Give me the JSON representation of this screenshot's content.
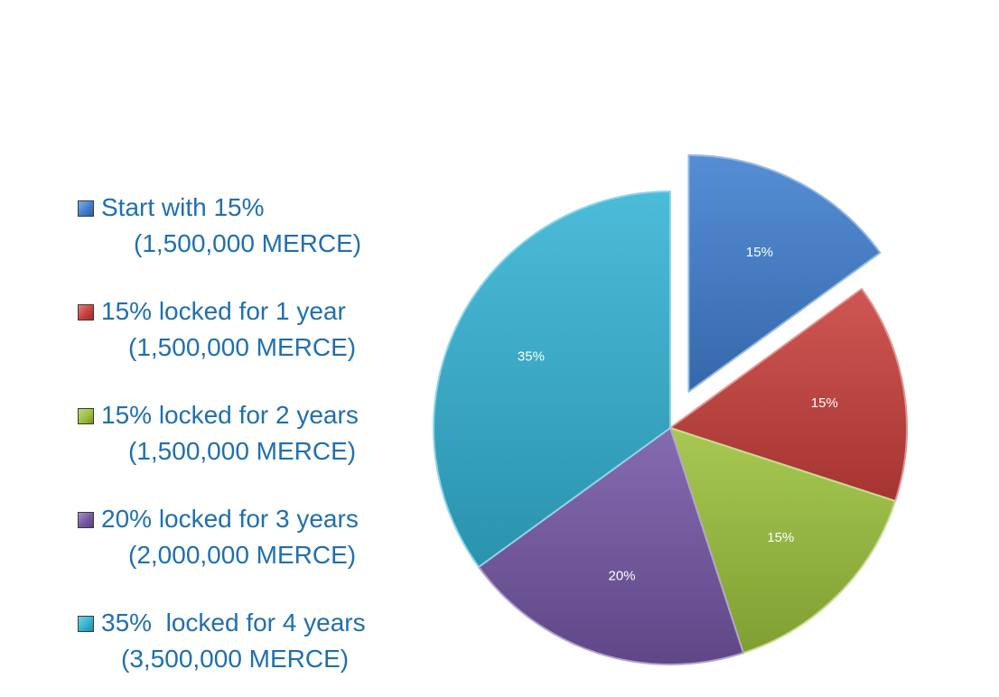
{
  "chart_data": {
    "type": "pie",
    "title": "",
    "slices": [
      {
        "label": "Start with 15%",
        "sublabel": "(1,500,000 MERCE)",
        "value": 15,
        "data_label": "15%",
        "color": "#3f7fcf",
        "exploded": true
      },
      {
        "label": "15% locked for 1 year",
        "sublabel": "(1,500,000 MERCE)",
        "value": 15,
        "data_label": "15%",
        "color": "#c9403c",
        "exploded": false
      },
      {
        "label": "15% locked for 2 years",
        "sublabel": "(1,500,000 MERCE)",
        "value": 15,
        "data_label": "15%",
        "color": "#9bc23c",
        "exploded": false
      },
      {
        "label": "20% locked for 3 years",
        "sublabel": "(2,000,000 MERCE)",
        "value": 20,
        "data_label": "20%",
        "color": "#7457a5",
        "exploded": false
      },
      {
        "label": "35%  locked for 4 years",
        "sublabel": "(3,500,000 MERCE)",
        "value": 35,
        "data_label": "35%",
        "color": "#33b3d4",
        "exploded": false
      }
    ],
    "legend_position": "left"
  }
}
